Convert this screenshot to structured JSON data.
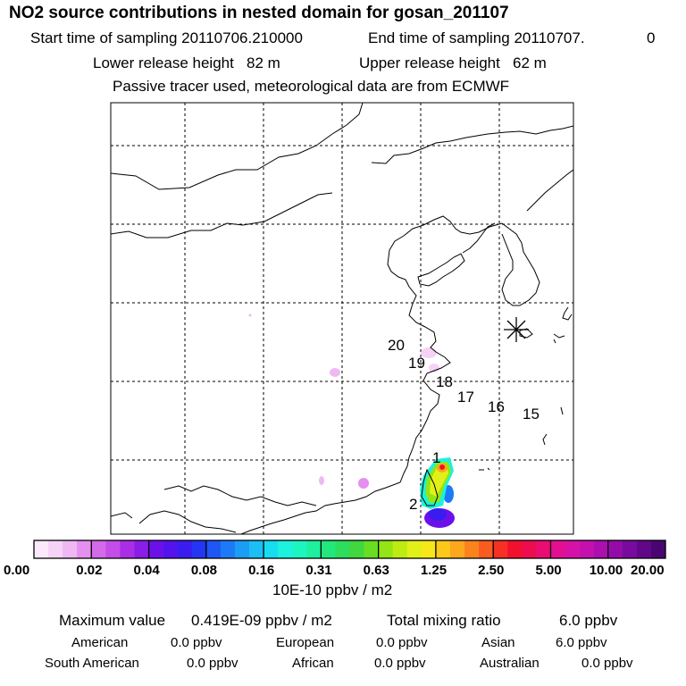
{
  "header": {
    "title": "NO2 source contributions in nested domain for gosan_201107",
    "start_label": "Start time of sampling 20110706.210000",
    "end_label": "End time of sampling 20110707.",
    "end_suffix": "0",
    "lower_release": "Lower release height   82 m",
    "upper_release": "Upper release height   62 m",
    "tracer_note": "Passive tracer used, meteorological data are from ECMWF"
  },
  "map": {
    "trajectory_labels": [
      "1",
      "2",
      "15",
      "16",
      "17",
      "18",
      "19",
      "20"
    ],
    "receptor_marker": "receptor-star-icon"
  },
  "colorbar": {
    "ticks": [
      "0.00",
      "0.02",
      "0.04",
      "0.08",
      "0.16",
      "0.31",
      "0.63",
      "1.25",
      "2.50",
      "5.00",
      "10.00",
      "20.00"
    ],
    "unit": "10E-10 ppbv / m2",
    "colors": [
      "#fbe9fb",
      "#f6d2f6",
      "#f0b8f3",
      "#e58fef",
      "#d36ae9",
      "#c34de6",
      "#a92ee6",
      "#8c1ce8",
      "#6c10ea",
      "#5413ec",
      "#3a1cf0",
      "#2436f3",
      "#1f57f5",
      "#1d7af6",
      "#1b9df6",
      "#1abff4",
      "#18dcef",
      "#1cf2dd",
      "#1df5c0",
      "#1ef09d",
      "#22e87c",
      "#2ddd5c",
      "#40d73f",
      "#68dd22",
      "#93e514",
      "#bdec12",
      "#e1f019",
      "#f7e71a",
      "#fcc91b",
      "#fca71c",
      "#fb831d",
      "#fa5b20",
      "#f73025",
      "#f2102e",
      "#ec0c4f",
      "#e90c72",
      "#e30f92",
      "#d711a6",
      "#c510b0",
      "#ac0eaf",
      "#930ca8",
      "#7a0a9d",
      "#610888",
      "#4a0670"
    ]
  },
  "stats": {
    "max_label": "Maximum value",
    "max_value": "0.419E-09 ppbv / m2",
    "total_label": "Total mixing ratio",
    "total_value": "6.0 ppbv",
    "sources": [
      {
        "name": "American",
        "value": "0.0 ppbv"
      },
      {
        "name": "European",
        "value": "0.0 ppbv"
      },
      {
        "name": "Asian",
        "value": "6.0 ppbv"
      },
      {
        "name": "South American",
        "value": "0.0 ppbv"
      },
      {
        "name": "African",
        "value": "0.0 ppbv"
      },
      {
        "name": "Australian",
        "value": "0.0 ppbv"
      }
    ]
  }
}
